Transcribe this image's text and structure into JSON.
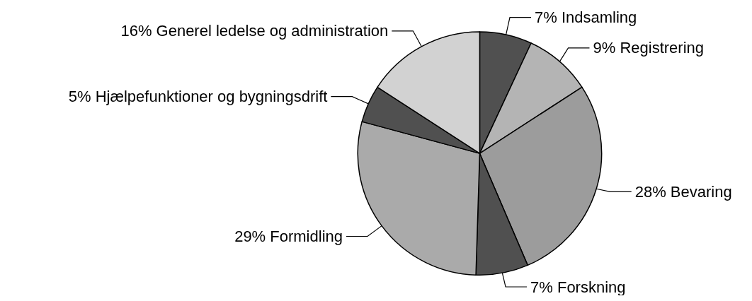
{
  "chart_data": {
    "type": "pie",
    "categories": [
      "Indsamling",
      "Registrering",
      "Bevaring",
      "Forskning",
      "Formidling",
      "Hjælpefunktioner og bygningsdrift",
      "Generel ledelse og administration"
    ],
    "values": [
      7,
      9,
      28,
      7,
      29,
      5,
      16
    ],
    "value_labels": [
      "7%",
      "9%",
      "28%",
      "7%",
      "29%",
      "5%",
      "16%"
    ],
    "colors": [
      "#505050",
      "#b4b4b4",
      "#9c9c9c",
      "#505050",
      "#aaaaaa",
      "#505050",
      "#d2d2d2"
    ],
    "legend": false
  }
}
